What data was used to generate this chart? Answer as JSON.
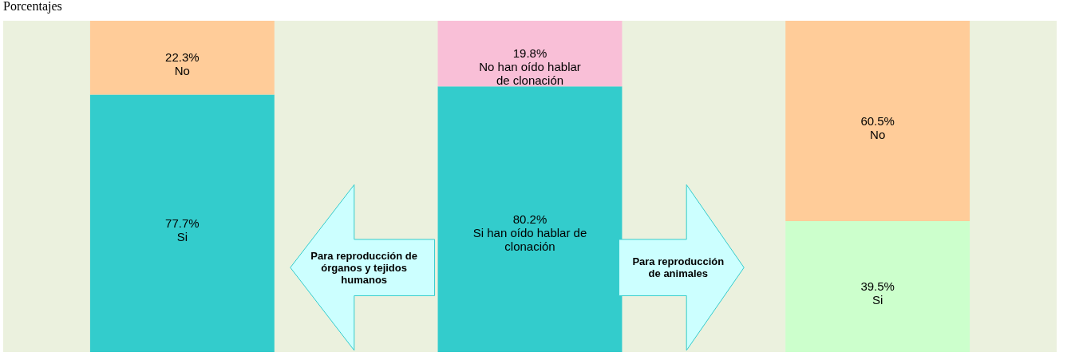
{
  "chart_data": {
    "type": "bar",
    "stacked": true,
    "title": "Porcentajes",
    "categories": [
      null,
      null,
      null
    ],
    "tick_labels": false,
    "series": [
      {
        "values": [
          77.7,
          80.2,
          39.5
        ],
        "colors": [
          "#33cccc",
          "#33cccc",
          "#ccffcc"
        ],
        "value_labels": [
          "77.7%\nSi",
          "80.2%\nSi han oído hablar de\nclonación",
          "39.5%\nSi"
        ]
      },
      {
        "values": [
          22.3,
          19.8,
          60.5
        ],
        "colors": [
          "#ffcc99",
          "#f9bfd7",
          "#ffcc99"
        ],
        "value_labels": [
          "22.3%\nNo",
          "19.8%\nNo han oído hablar\nde clonación",
          "60.5%\nNo"
        ]
      }
    ],
    "annotations": [
      "Para reproducción de órganos y tejidos humanos",
      "Para reproducción de animales"
    ]
  }
}
